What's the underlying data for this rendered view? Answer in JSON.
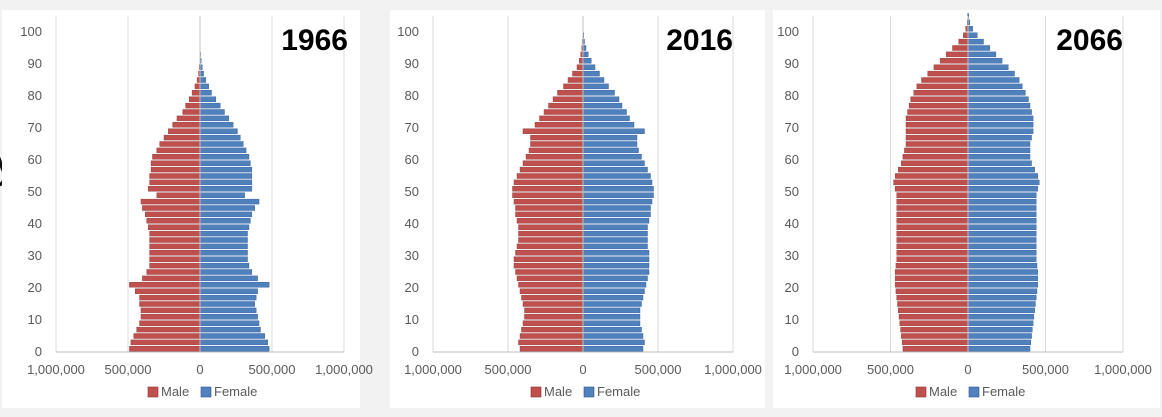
{
  "slide_text_fragment": "y",
  "colors": {
    "male": "#c0504d",
    "male_edge": "#8c3330",
    "female": "#4f81bd",
    "female_edge": "#2f5597",
    "grid": "#d9d9d9",
    "axis": "#bfbfbf",
    "tick_text": "#595959"
  },
  "chart_data": [
    {
      "type": "bar",
      "orientation": "horizontal-population-pyramid",
      "title": "1966",
      "x_tick_labels": [
        "1,000,000",
        "500,000",
        "0",
        "500,000",
        "1,000,000"
      ],
      "y_tick_labels": [
        "0",
        "10",
        "20",
        "30",
        "40",
        "50",
        "60",
        "70",
        "80",
        "90",
        "100"
      ],
      "xlim": [
        -1000000,
        1000000
      ],
      "ylim": [
        0,
        105
      ],
      "age_step": 2,
      "grid": true,
      "legend": "bottom",
      "series": [
        {
          "name": "Male",
          "ages": [
            0,
            2,
            4,
            6,
            8,
            10,
            12,
            14,
            16,
            18,
            20,
            22,
            24,
            26,
            28,
            30,
            32,
            34,
            36,
            38,
            40,
            42,
            44,
            46,
            48,
            50,
            52,
            54,
            56,
            58,
            60,
            62,
            64,
            66,
            68,
            70,
            72,
            74,
            76,
            78,
            80,
            82,
            84,
            86,
            88,
            90,
            92,
            94,
            96,
            98,
            100,
            102,
            104
          ],
          "values": [
            490000,
            480000,
            460000,
            440000,
            420000,
            410000,
            410000,
            420000,
            420000,
            450000,
            490000,
            400000,
            370000,
            350000,
            350000,
            350000,
            350000,
            350000,
            350000,
            360000,
            370000,
            380000,
            400000,
            410000,
            300000,
            360000,
            350000,
            350000,
            340000,
            340000,
            330000,
            300000,
            280000,
            250000,
            220000,
            190000,
            160000,
            120000,
            100000,
            75000,
            55000,
            35000,
            20000,
            10000,
            5000,
            2000,
            1000,
            500,
            200,
            100,
            0,
            0,
            0
          ]
        },
        {
          "name": "Female",
          "ages": [
            0,
            2,
            4,
            6,
            8,
            10,
            12,
            14,
            16,
            18,
            20,
            22,
            24,
            26,
            28,
            30,
            32,
            34,
            36,
            38,
            40,
            42,
            44,
            46,
            48,
            50,
            52,
            54,
            56,
            58,
            60,
            62,
            64,
            66,
            68,
            70,
            72,
            74,
            76,
            78,
            80,
            82,
            84,
            86,
            88,
            90,
            92,
            94,
            96,
            98,
            100,
            102,
            104
          ],
          "values": [
            480000,
            470000,
            450000,
            420000,
            410000,
            400000,
            390000,
            380000,
            390000,
            400000,
            480000,
            400000,
            360000,
            340000,
            330000,
            330000,
            330000,
            330000,
            330000,
            340000,
            350000,
            360000,
            380000,
            410000,
            310000,
            360000,
            360000,
            360000,
            360000,
            350000,
            340000,
            320000,
            300000,
            280000,
            260000,
            230000,
            200000,
            170000,
            140000,
            110000,
            80000,
            60000,
            40000,
            25000,
            15000,
            8000,
            4000,
            2000,
            1000,
            500,
            200,
            100,
            0
          ]
        }
      ]
    },
    {
      "type": "bar",
      "orientation": "horizontal-population-pyramid",
      "title": "2016",
      "x_tick_labels": [
        "1,000,000",
        "500,000",
        "0",
        "500,000",
        "1,000,000"
      ],
      "y_tick_labels": [
        "0",
        "10",
        "20",
        "30",
        "40",
        "50",
        "60",
        "70",
        "80",
        "90",
        "100"
      ],
      "xlim": [
        -1000000,
        1000000
      ],
      "ylim": [
        0,
        105
      ],
      "age_step": 2,
      "grid": true,
      "legend": "bottom",
      "series": [
        {
          "name": "Male",
          "ages": [
            0,
            2,
            4,
            6,
            8,
            10,
            12,
            14,
            16,
            18,
            20,
            22,
            24,
            26,
            28,
            30,
            32,
            34,
            36,
            38,
            40,
            42,
            44,
            46,
            48,
            50,
            52,
            54,
            56,
            58,
            60,
            62,
            64,
            66,
            68,
            70,
            72,
            74,
            76,
            78,
            80,
            82,
            84,
            86,
            88,
            90,
            92,
            94,
            96,
            98,
            100,
            102,
            104
          ],
          "values": [
            420000,
            430000,
            420000,
            410000,
            400000,
            390000,
            390000,
            400000,
            410000,
            420000,
            430000,
            440000,
            450000,
            460000,
            460000,
            450000,
            440000,
            430000,
            430000,
            430000,
            440000,
            450000,
            450000,
            460000,
            470000,
            470000,
            460000,
            440000,
            420000,
            400000,
            380000,
            360000,
            350000,
            350000,
            400000,
            320000,
            290000,
            260000,
            230000,
            200000,
            170000,
            130000,
            100000,
            70000,
            40000,
            25000,
            15000,
            8000,
            4000,
            2000,
            1000,
            500,
            0
          ]
        },
        {
          "name": "Female",
          "ages": [
            0,
            2,
            4,
            6,
            8,
            10,
            12,
            14,
            16,
            18,
            20,
            22,
            24,
            26,
            28,
            30,
            32,
            34,
            36,
            38,
            40,
            42,
            44,
            46,
            48,
            50,
            52,
            54,
            56,
            58,
            60,
            62,
            64,
            66,
            68,
            70,
            72,
            74,
            76,
            78,
            80,
            82,
            84,
            86,
            88,
            90,
            92,
            94,
            96,
            98,
            100,
            102,
            104
          ],
          "values": [
            400000,
            410000,
            400000,
            390000,
            380000,
            380000,
            380000,
            390000,
            400000,
            410000,
            420000,
            430000,
            440000,
            440000,
            440000,
            440000,
            430000,
            430000,
            430000,
            430000,
            440000,
            450000,
            450000,
            460000,
            470000,
            470000,
            460000,
            450000,
            430000,
            410000,
            390000,
            370000,
            360000,
            360000,
            410000,
            340000,
            310000,
            290000,
            260000,
            240000,
            210000,
            170000,
            140000,
            110000,
            80000,
            55000,
            35000,
            20000,
            10000,
            5000,
            2000,
            1000,
            0
          ]
        }
      ]
    },
    {
      "type": "bar",
      "orientation": "horizontal-population-pyramid",
      "title": "2066",
      "x_tick_labels": [
        "1,000,000",
        "500,000",
        "0",
        "500,000",
        "1,000,000"
      ],
      "y_tick_labels": [
        "0",
        "10",
        "20",
        "30",
        "40",
        "50",
        "60",
        "70",
        "80",
        "90",
        "100"
      ],
      "xlim": [
        -1000000,
        1000000
      ],
      "ylim": [
        0,
        105
      ],
      "age_step": 2,
      "grid": true,
      "legend": "bottom",
      "series": [
        {
          "name": "Male",
          "ages": [
            0,
            2,
            4,
            6,
            8,
            10,
            12,
            14,
            16,
            18,
            20,
            22,
            24,
            26,
            28,
            30,
            32,
            34,
            36,
            38,
            40,
            42,
            44,
            46,
            48,
            50,
            52,
            54,
            56,
            58,
            60,
            62,
            64,
            66,
            68,
            70,
            72,
            74,
            76,
            78,
            80,
            82,
            84,
            86,
            88,
            90,
            92,
            94,
            96,
            98,
            100,
            102,
            104
          ],
          "values": [
            420000,
            425000,
            430000,
            435000,
            440000,
            445000,
            450000,
            455000,
            460000,
            465000,
            470000,
            470000,
            470000,
            465000,
            460000,
            460000,
            460000,
            460000,
            460000,
            460000,
            460000,
            460000,
            460000,
            460000,
            460000,
            470000,
            480000,
            470000,
            450000,
            430000,
            420000,
            410000,
            400000,
            400000,
            400000,
            400000,
            400000,
            390000,
            380000,
            370000,
            350000,
            330000,
            300000,
            260000,
            220000,
            180000,
            140000,
            100000,
            60000,
            30000,
            15000,
            5000,
            2000
          ]
        },
        {
          "name": "Female",
          "ages": [
            0,
            2,
            4,
            6,
            8,
            10,
            12,
            14,
            16,
            18,
            20,
            22,
            24,
            26,
            28,
            30,
            32,
            34,
            36,
            38,
            40,
            42,
            44,
            46,
            48,
            50,
            52,
            54,
            56,
            58,
            60,
            62,
            64,
            66,
            68,
            70,
            72,
            74,
            76,
            78,
            80,
            82,
            84,
            86,
            88,
            90,
            92,
            94,
            96,
            98,
            100,
            102,
            104
          ],
          "values": [
            400000,
            405000,
            410000,
            415000,
            420000,
            425000,
            430000,
            435000,
            440000,
            445000,
            450000,
            450000,
            450000,
            445000,
            440000,
            440000,
            440000,
            440000,
            440000,
            440000,
            440000,
            440000,
            440000,
            440000,
            440000,
            450000,
            460000,
            450000,
            430000,
            410000,
            400000,
            400000,
            400000,
            410000,
            420000,
            420000,
            420000,
            410000,
            400000,
            390000,
            370000,
            350000,
            330000,
            300000,
            260000,
            220000,
            180000,
            140000,
            100000,
            60000,
            30000,
            12000,
            4000
          ]
        }
      ]
    }
  ]
}
